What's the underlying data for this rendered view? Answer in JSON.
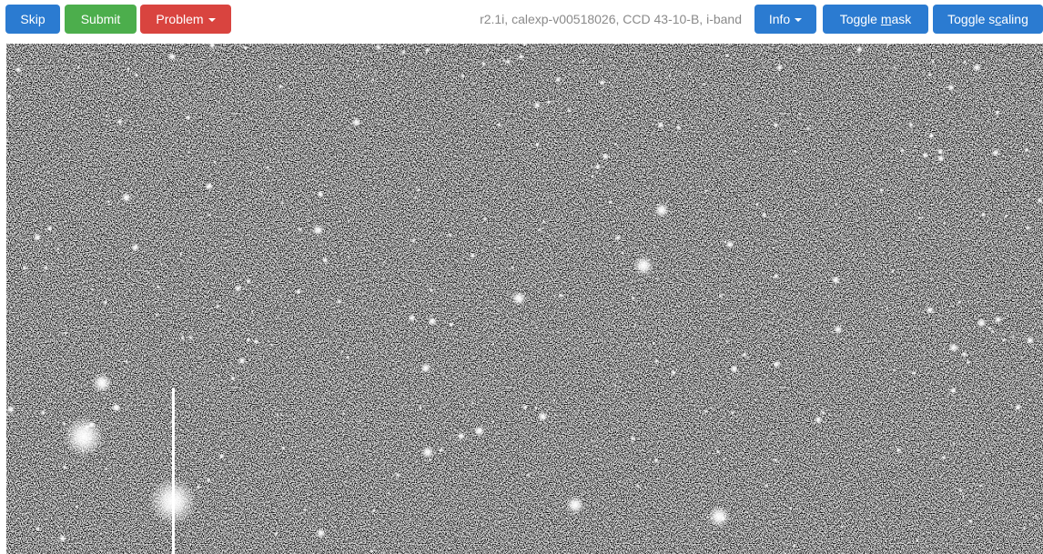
{
  "toolbar": {
    "buttons": [
      {
        "label": "Skip",
        "color": "#2b7bd1"
      },
      {
        "label": "Submit",
        "color": "#4cae4c"
      },
      {
        "label": "Problem",
        "color": "#d9443f",
        "dropdown": true
      }
    ],
    "info_text": "r2.1i, calexp-v00518026, CCD 43-10-B, i-band",
    "right_buttons": [
      {
        "label": "Info",
        "color": "#2b7bd1",
        "dropdown": true
      },
      {
        "label": "Toggle mask",
        "color": "#2b7bd1",
        "shortcut": "m"
      },
      {
        "label": "Toggle scaling",
        "color": "#2b7bd1",
        "shortcut": "c"
      }
    ]
  }
}
